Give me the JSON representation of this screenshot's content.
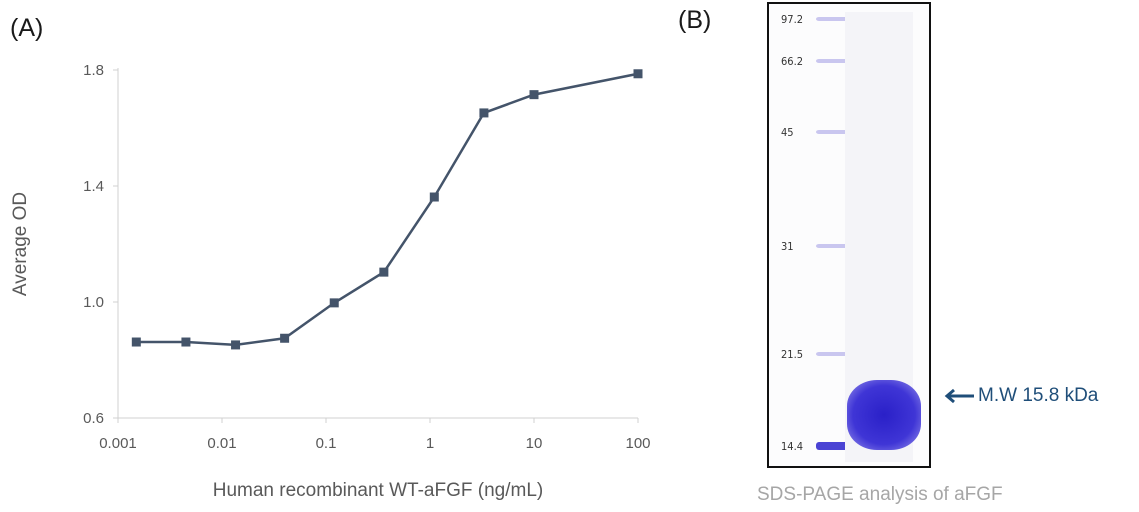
{
  "panels": {
    "a_label": "(A)",
    "b_label": "(B)"
  },
  "chart_data": {
    "type": "line",
    "x_scale": "log",
    "x": [
      0.0015,
      0.0045,
      0.0135,
      0.04,
      0.12,
      0.36,
      1.1,
      3.3,
      10,
      100
    ],
    "series": [
      {
        "values": [
          0.862,
          0.862,
          0.852,
          0.875,
          0.997,
          1.103,
          1.362,
          1.652,
          1.715,
          1.787
        ],
        "color": "#44546a",
        "marker": "square"
      }
    ],
    "xticks": [
      "0.001",
      "0.01",
      "0.1",
      "1",
      "10",
      "100"
    ],
    "xtick_values": [
      0.001,
      0.01,
      0.1,
      1,
      10,
      100
    ],
    "yticks": [
      "0.6",
      "1.0",
      "1.4",
      "1.8"
    ],
    "ytick_values": [
      0.6,
      1.0,
      1.4,
      1.8
    ],
    "xlabel": "Human recombinant WT-aFGF (ng/mL)",
    "ylabel": "Average OD",
    "xlim": [
      0.001,
      100
    ],
    "ylim": [
      0.6,
      1.8
    ],
    "grid": false
  },
  "gel": {
    "markers": [
      "97.2",
      "66.2",
      "45",
      "31",
      "21.5",
      "14.4"
    ],
    "marker_kda": [
      97.2,
      66.2,
      45,
      31,
      21.5,
      14.4
    ],
    "band_color": "#3a2fd0",
    "annotation": "M.W 15.8 kDa",
    "caption": "SDS-PAGE analysis of aFGF"
  }
}
